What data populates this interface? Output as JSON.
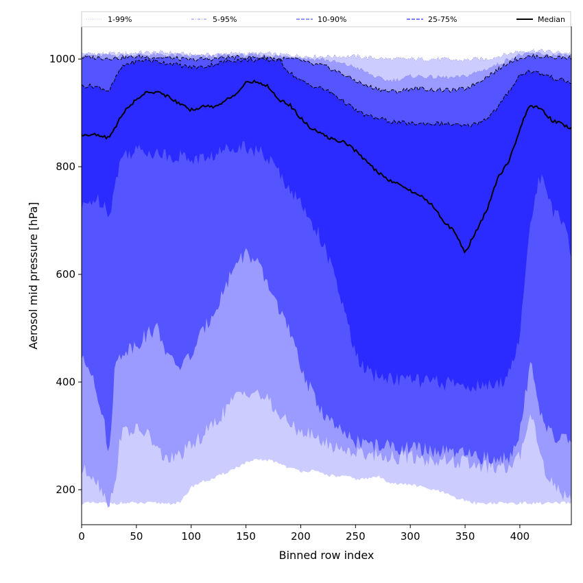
{
  "chart_data": {
    "type": "area",
    "xlabel": "Binned row index",
    "ylabel": "Aerosol mid pressure [hPa]",
    "xlim": [
      0,
      447
    ],
    "ylim": [
      135,
      1060
    ],
    "xticks": [
      0,
      50,
      100,
      150,
      200,
      250,
      300,
      350,
      400
    ],
    "yticks": [
      200,
      400,
      600,
      800,
      1000
    ],
    "grid": false,
    "legend_position": "top",
    "legend": [
      {
        "label": "1-99%",
        "style": "dotted",
        "color": "#ccccff"
      },
      {
        "label": "5-95%",
        "style": "dashdot",
        "color": "#9a9aff"
      },
      {
        "label": "10-90%",
        "style": "dashed",
        "color": "#5555ff"
      },
      {
        "label": "25-75%",
        "style": "dashed",
        "color": "#2b2bff"
      },
      {
        "label": "Median",
        "style": "solid",
        "color": "#000000"
      }
    ],
    "x": [
      0,
      10,
      20,
      25,
      30,
      35,
      40,
      50,
      60,
      70,
      80,
      90,
      100,
      110,
      120,
      130,
      140,
      150,
      160,
      170,
      180,
      190,
      200,
      210,
      220,
      230,
      240,
      250,
      260,
      270,
      280,
      290,
      300,
      310,
      320,
      330,
      340,
      350,
      360,
      370,
      380,
      390,
      400,
      405,
      410,
      415,
      420,
      425,
      430,
      440,
      447
    ],
    "bands": [
      {
        "name": "1-99%",
        "color": "#ccccff",
        "lower": [
          175,
          175,
          175,
          175,
          175,
          175,
          175,
          175,
          175,
          175,
          175,
          175,
          205,
          215,
          220,
          230,
          240,
          250,
          255,
          255,
          250,
          240,
          235,
          235,
          230,
          225,
          225,
          220,
          220,
          225,
          215,
          210,
          210,
          205,
          200,
          195,
          185,
          180,
          175,
          175,
          175,
          175,
          175,
          175,
          175,
          175,
          175,
          175,
          175,
          175,
          175
        ],
        "upper": [
          1010,
          1010,
          1010,
          1010,
          1010,
          1010,
          1010,
          1012,
          1012,
          1012,
          1012,
          1010,
          1008,
          1008,
          1008,
          1010,
          1010,
          1010,
          1010,
          1010,
          1008,
          1008,
          1005,
          1005,
          1005,
          1005,
          1005,
          1005,
          1003,
          1002,
          1000,
          1000,
          1000,
          1000,
          1000,
          1000,
          998,
          998,
          1000,
          1000,
          1005,
          1010,
          1015,
          1015,
          1016,
          1016,
          1015,
          1015,
          1012,
          1012,
          1010
        ]
      },
      {
        "name": "5-95%",
        "color": "#9a9aff",
        "lower": [
          235,
          230,
          195,
          175,
          200,
          300,
          310,
          310,
          305,
          270,
          255,
          265,
          280,
          300,
          320,
          345,
          370,
          385,
          380,
          365,
          340,
          320,
          310,
          300,
          290,
          280,
          275,
          270,
          268,
          265,
          262,
          260,
          262,
          258,
          255,
          255,
          252,
          250,
          245,
          242,
          240,
          240,
          260,
          310,
          350,
          300,
          255,
          230,
          210,
          190,
          190
        ],
        "upper": [
          1007,
          1007,
          1007,
          1007,
          1007,
          1007,
          1007,
          1008,
          1008,
          1008,
          1007,
          1007,
          1005,
          1005,
          1005,
          1007,
          1007,
          1007,
          1007,
          1007,
          1005,
          1005,
          1003,
          1000,
          1000,
          995,
          990,
          985,
          975,
          965,
          960,
          962,
          968,
          968,
          966,
          966,
          965,
          968,
          975,
          982,
          990,
          1000,
          1008,
          1008,
          1010,
          1010,
          1010,
          1008,
          1007,
          1007,
          1007
        ]
      },
      {
        "name": "10-90%",
        "color": "#5555ff",
        "lower": [
          440,
          420,
          330,
          260,
          420,
          450,
          460,
          470,
          490,
          500,
          440,
          430,
          450,
          490,
          530,
          570,
          620,
          640,
          620,
          580,
          540,
          490,
          430,
          380,
          345,
          320,
          300,
          290,
          285,
          282,
          280,
          278,
          278,
          275,
          272,
          270,
          268,
          265,
          262,
          258,
          255,
          260,
          310,
          380,
          430,
          390,
          330,
          310,
          300,
          290,
          300
        ],
        "upper": [
          1003,
          1003,
          1002,
          1002,
          1002,
          1002,
          1003,
          1004,
          1004,
          1003,
          1002,
          1000,
          998,
          1000,
          1000,
          1003,
          1003,
          1003,
          1003,
          1003,
          1000,
          1000,
          998,
          990,
          988,
          980,
          970,
          960,
          950,
          945,
          940,
          940,
          945,
          945,
          943,
          942,
          942,
          945,
          955,
          968,
          980,
          995,
          1002,
          1003,
          1005,
          1005,
          1005,
          1005,
          1003,
          1003,
          1002
        ]
      },
      {
        "name": "25-75%",
        "color": "#2b2bff",
        "lower": [
          720,
          740,
          735,
          710,
          760,
          810,
          825,
          830,
          830,
          825,
          820,
          820,
          815,
          815,
          820,
          830,
          840,
          838,
          830,
          815,
          790,
          760,
          730,
          700,
          660,
          600,
          530,
          450,
          420,
          410,
          408,
          405,
          405,
          402,
          400,
          398,
          396,
          394,
          392,
          392,
          392,
          420,
          480,
          600,
          700,
          760,
          780,
          760,
          720,
          690,
          640
        ],
        "upper": [
          950,
          950,
          945,
          940,
          960,
          980,
          990,
          995,
          998,
          995,
          992,
          988,
          985,
          985,
          990,
          995,
          998,
          998,
          998,
          998,
          998,
          975,
          960,
          950,
          945,
          935,
          920,
          905,
          895,
          890,
          885,
          882,
          880,
          880,
          880,
          880,
          878,
          875,
          880,
          890,
          910,
          940,
          970,
          975,
          978,
          975,
          972,
          970,
          965,
          960,
          955
        ]
      }
    ],
    "median": {
      "name": "Median",
      "values": [
        860,
        860,
        855,
        855,
        870,
        890,
        905,
        925,
        940,
        938,
        930,
        915,
        905,
        912,
        912,
        920,
        935,
        955,
        958,
        950,
        925,
        915,
        890,
        870,
        860,
        850,
        845,
        830,
        810,
        790,
        775,
        770,
        755,
        745,
        730,
        700,
        680,
        640,
        680,
        720,
        780,
        810,
        870,
        895,
        915,
        910,
        905,
        895,
        885,
        878,
        870
      ]
    }
  }
}
